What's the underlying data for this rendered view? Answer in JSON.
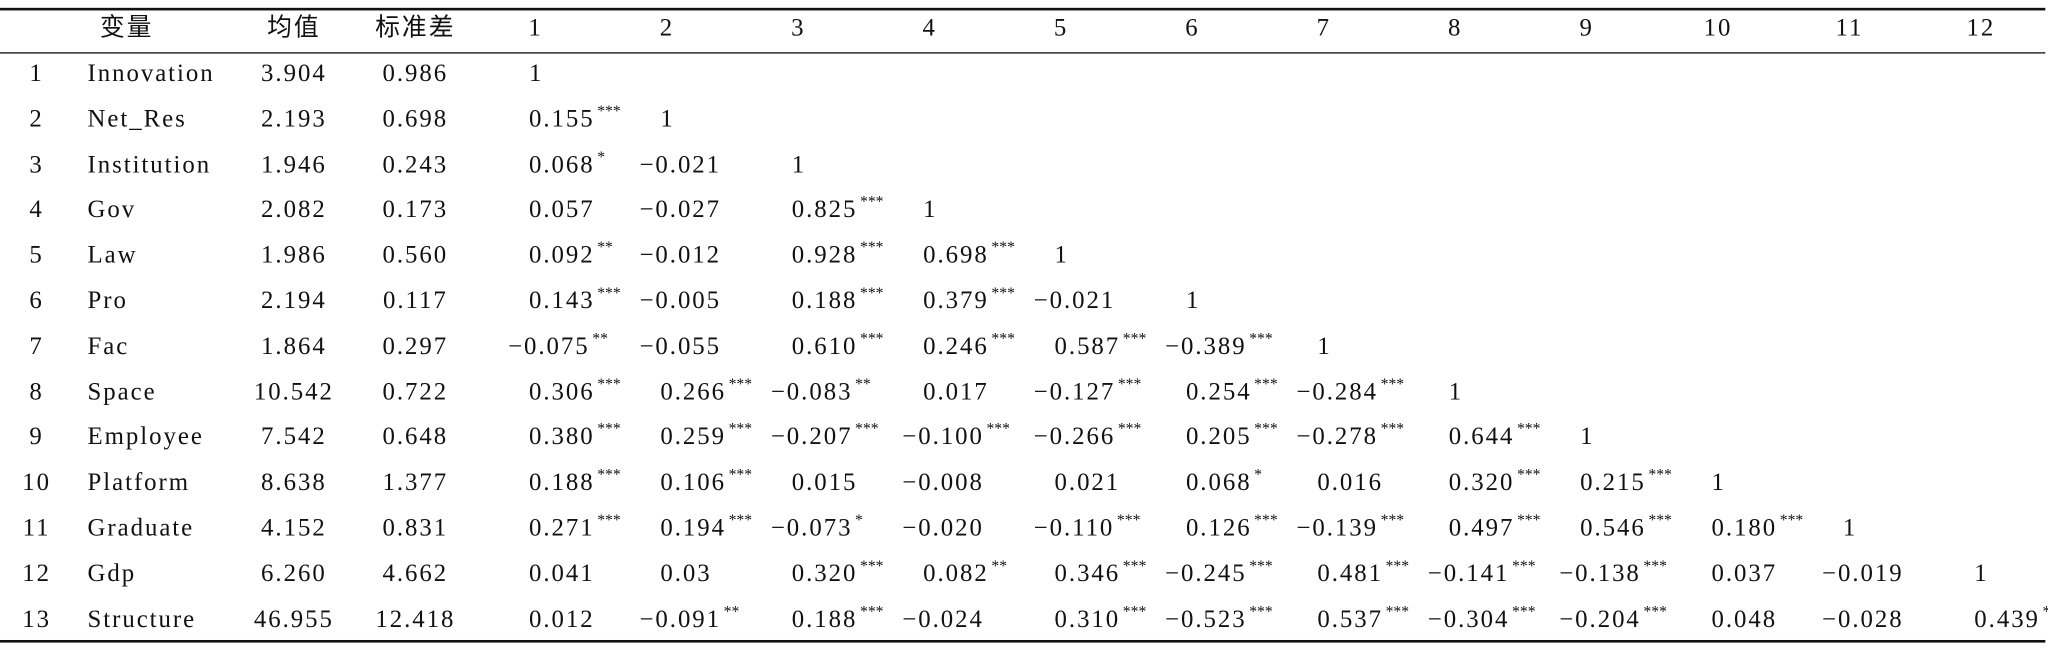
{
  "table": {
    "columns": [
      "变量",
      "均值",
      "标准差",
      "1",
      "2",
      "3",
      "4",
      "5",
      "6",
      "7",
      "8",
      "9",
      "10",
      "11",
      "12"
    ],
    "rows": [
      {
        "index": "1",
        "variable": "Innovation",
        "mean": "3.904",
        "sd": "0.986",
        "corr": [
          {
            "value": "1"
          }
        ]
      },
      {
        "index": "2",
        "variable": "Net_Res",
        "mean": "2.193",
        "sd": "0.698",
        "corr": [
          {
            "value": "0.155",
            "sig": "***"
          },
          {
            "value": "1"
          }
        ]
      },
      {
        "index": "3",
        "variable": "Institution",
        "mean": "1.946",
        "sd": "0.243",
        "corr": [
          {
            "value": "0.068",
            "sig": "*"
          },
          {
            "value": "−0.021"
          },
          {
            "value": "1"
          }
        ]
      },
      {
        "index": "4",
        "variable": "Gov",
        "mean": "2.082",
        "sd": "0.173",
        "corr": [
          {
            "value": "0.057"
          },
          {
            "value": "−0.027"
          },
          {
            "value": "0.825",
            "sig": "***"
          },
          {
            "value": "1"
          }
        ]
      },
      {
        "index": "5",
        "variable": "Law",
        "mean": "1.986",
        "sd": "0.560",
        "corr": [
          {
            "value": "0.092",
            "sig": "**"
          },
          {
            "value": "−0.012"
          },
          {
            "value": "0.928",
            "sig": "***"
          },
          {
            "value": "0.698",
            "sig": "***"
          },
          {
            "value": "1"
          }
        ]
      },
      {
        "index": "6",
        "variable": "Pro",
        "mean": "2.194",
        "sd": "0.117",
        "corr": [
          {
            "value": "0.143",
            "sig": "***"
          },
          {
            "value": "−0.005"
          },
          {
            "value": "0.188",
            "sig": "***"
          },
          {
            "value": "0.379",
            "sig": "***"
          },
          {
            "value": "−0.021"
          },
          {
            "value": "1"
          }
        ]
      },
      {
        "index": "7",
        "variable": "Fac",
        "mean": "1.864",
        "sd": "0.297",
        "corr": [
          {
            "value": "−0.075",
            "sig": "**"
          },
          {
            "value": "−0.055"
          },
          {
            "value": "0.610",
            "sig": "***"
          },
          {
            "value": "0.246",
            "sig": "***"
          },
          {
            "value": "0.587",
            "sig": "***"
          },
          {
            "value": "−0.389",
            "sig": "***"
          },
          {
            "value": "1"
          }
        ]
      },
      {
        "index": "8",
        "variable": "Space",
        "mean": "10.542",
        "sd": "0.722",
        "corr": [
          {
            "value": "0.306",
            "sig": "***"
          },
          {
            "value": "0.266",
            "sig": "***"
          },
          {
            "value": "−0.083",
            "sig": "**"
          },
          {
            "value": "0.017"
          },
          {
            "value": "−0.127",
            "sig": "***"
          },
          {
            "value": "0.254",
            "sig": "***"
          },
          {
            "value": "−0.284",
            "sig": "***"
          },
          {
            "value": "1"
          }
        ]
      },
      {
        "index": "9",
        "variable": "Employee",
        "mean": "7.542",
        "sd": "0.648",
        "corr": [
          {
            "value": "0.380",
            "sig": "***"
          },
          {
            "value": "0.259",
            "sig": "***"
          },
          {
            "value": "−0.207",
            "sig": "***"
          },
          {
            "value": "−0.100",
            "sig": "***"
          },
          {
            "value": "−0.266",
            "sig": "***"
          },
          {
            "value": "0.205",
            "sig": "***"
          },
          {
            "value": "−0.278",
            "sig": "***"
          },
          {
            "value": "0.644",
            "sig": "***"
          },
          {
            "value": "1"
          }
        ]
      },
      {
        "index": "10",
        "variable": "Platform",
        "mean": "8.638",
        "sd": "1.377",
        "corr": [
          {
            "value": "0.188",
            "sig": "***"
          },
          {
            "value": "0.106",
            "sig": "***"
          },
          {
            "value": "0.015"
          },
          {
            "value": "−0.008"
          },
          {
            "value": "0.021"
          },
          {
            "value": "0.068",
            "sig": "*"
          },
          {
            "value": "0.016"
          },
          {
            "value": "0.320",
            "sig": "***"
          },
          {
            "value": "0.215",
            "sig": "***"
          },
          {
            "value": "1"
          }
        ]
      },
      {
        "index": "11",
        "variable": "Graduate",
        "mean": "4.152",
        "sd": "0.831",
        "corr": [
          {
            "value": "0.271",
            "sig": "***"
          },
          {
            "value": "0.194",
            "sig": "***"
          },
          {
            "value": "−0.073",
            "sig": "*"
          },
          {
            "value": "−0.020"
          },
          {
            "value": "−0.110",
            "sig": "***"
          },
          {
            "value": "0.126",
            "sig": "***"
          },
          {
            "value": "−0.139",
            "sig": "***"
          },
          {
            "value": "0.497",
            "sig": "***"
          },
          {
            "value": "0.546",
            "sig": "***"
          },
          {
            "value": "0.180",
            "sig": "***"
          },
          {
            "value": "1"
          }
        ]
      },
      {
        "index": "12",
        "variable": "Gdp",
        "mean": "6.260",
        "sd": "4.662",
        "corr": [
          {
            "value": "0.041"
          },
          {
            "value": "0.03"
          },
          {
            "value": "0.320",
            "sig": "***"
          },
          {
            "value": "0.082",
            "sig": "**"
          },
          {
            "value": "0.346",
            "sig": "***"
          },
          {
            "value": "−0.245",
            "sig": "***"
          },
          {
            "value": "0.481",
            "sig": "***"
          },
          {
            "value": "−0.141",
            "sig": "***"
          },
          {
            "value": "−0.138",
            "sig": "***"
          },
          {
            "value": "0.037"
          },
          {
            "value": "−0.019"
          },
          {
            "value": "1"
          }
        ]
      },
      {
        "index": "13",
        "variable": "Structure",
        "mean": "46.955",
        "sd": "12.418",
        "corr": [
          {
            "value": "0.012"
          },
          {
            "value": "−0.091",
            "sig": "**"
          },
          {
            "value": "0.188",
            "sig": "***"
          },
          {
            "value": "−0.024"
          },
          {
            "value": "0.310",
            "sig": "***"
          },
          {
            "value": "−0.523",
            "sig": "***"
          },
          {
            "value": "0.537",
            "sig": "***"
          },
          {
            "value": "−0.304",
            "sig": "***"
          },
          {
            "value": "−0.204",
            "sig": "***"
          },
          {
            "value": "0.048"
          },
          {
            "value": "−0.028"
          },
          {
            "value": "0.439",
            "sig": "***"
          }
        ]
      }
    ]
  }
}
